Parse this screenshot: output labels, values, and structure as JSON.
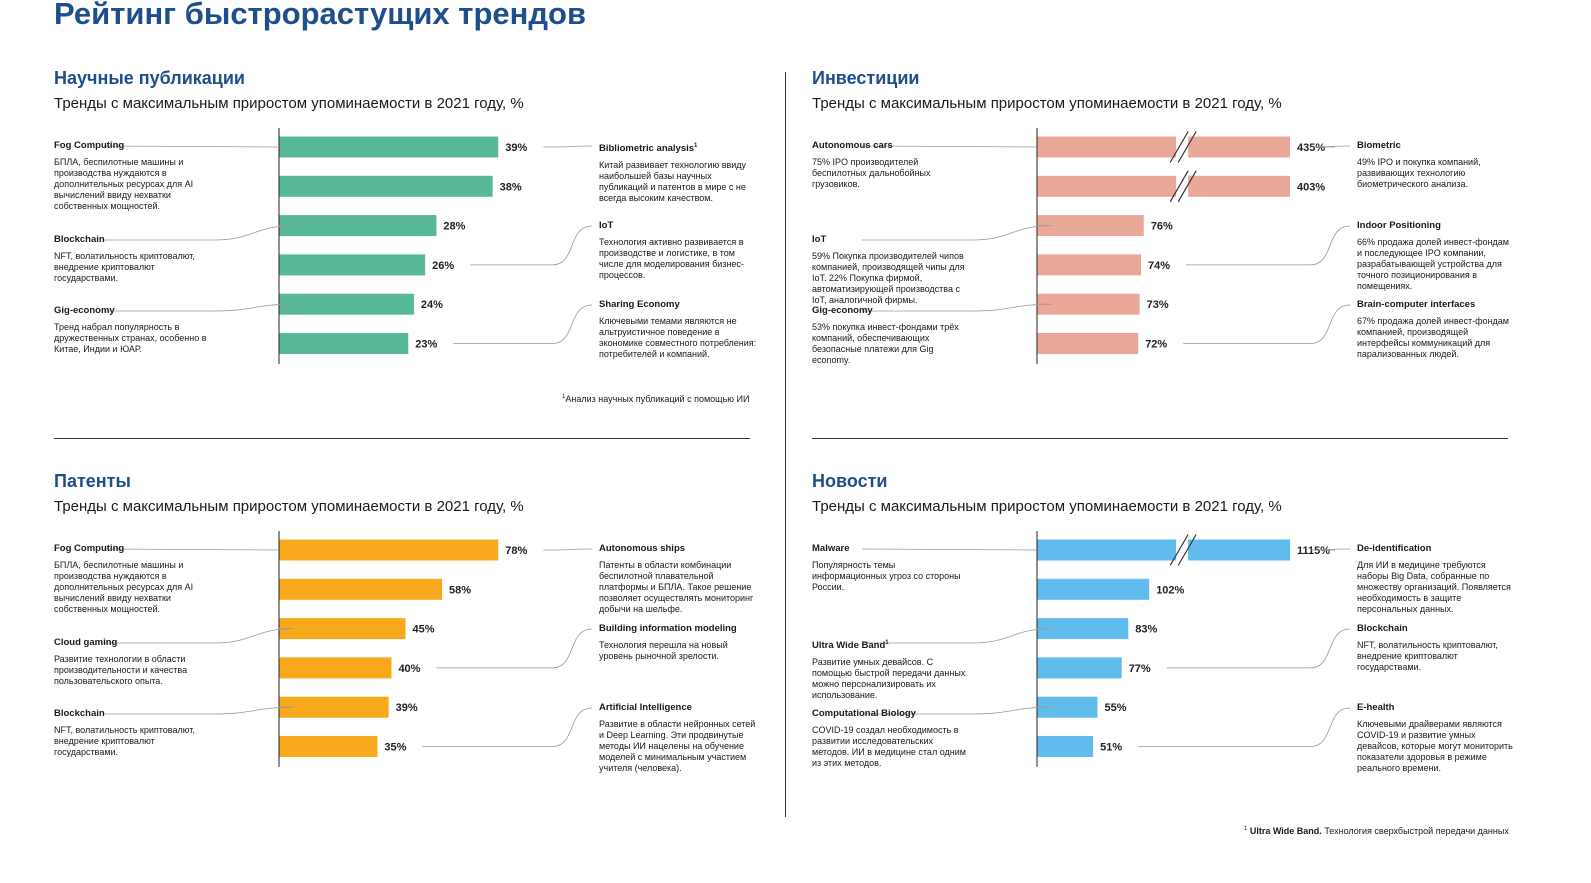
{
  "page": {
    "title": "Рейтинг быстрорастущих трендов"
  },
  "colors": {
    "science": "#57b89a",
    "invest": "#eaa998",
    "patents": "#f7a91b",
    "news": "#5fbcec",
    "title": "#1f4e8c"
  },
  "footnotes": {
    "science": "Анализ научных публикаций с помощью ИИ",
    "news_bold": "Ultra Wide Band.",
    "news_text": "Технология сверхбыстрой передачи данных"
  },
  "chart_data": [
    {
      "type": "bar",
      "title": "Научные публикации",
      "subtitle": "Тренды с максимальным приростом упоминаемости в 2021 году, %",
      "values": [
        39,
        38,
        28,
        26,
        24,
        23
      ],
      "labels": [
        "39%",
        "38%",
        "28%",
        "26%",
        "24%",
        "23%"
      ],
      "max": 45,
      "break_bars": [],
      "left_annotations": [
        {
          "title": "Fog Computing",
          "desc": "БПЛА, беспилотные машины и производства нуждаются в дополнительных ресурсах для AI вычислений ввиду нехватки собственных мощностей."
        },
        {
          "title": "Blockchain",
          "desc": "NFT, волатильность криптовалют, внедрение криптовалют государствами."
        },
        {
          "title": "Gig-economy",
          "desc": "Тренд набрал популярность в дружественных странах, особенно в Китае, Индии и ЮАР."
        }
      ],
      "right_annotations": [
        {
          "title": "Bibliometric analysis",
          "sup": "1",
          "desc": "Китай развивает технологию ввиду наибольшей базы научных публикаций и патентов в мире с не всегда высоким качеством."
        },
        {
          "title": "IoT",
          "desc": "Технология активно развивается в производстве и логистике, в том числе для моделирования бизнес-процессов."
        },
        {
          "title": "Sharing Economy",
          "desc": "Ключевыми темами являются не альтруистичное поведение в экономике совместного потребления: потребителей и компаний."
        }
      ]
    },
    {
      "type": "bar",
      "title": "Инвестиции",
      "subtitle": "Тренды с максимальным приростом упоминаемости в 2021 году, %",
      "values": [
        435,
        403,
        76,
        74,
        73,
        72
      ],
      "labels": [
        "435%",
        "403%",
        "76%",
        "74%",
        "73%",
        "72%"
      ],
      "max": 180,
      "break_bars": [
        0,
        1
      ],
      "left_annotations": [
        {
          "title": "Autonomous cars",
          "desc": "75% IPO производителей беспилотных дальнобойных грузовиков."
        },
        {
          "title": "IoT",
          "desc": "59% Покупка производителей чипов компанией, производящей чипы для IoT. 22% Покупка фирмой, автоматизирующей производства с IoT, аналогичной фирмы."
        },
        {
          "title": "Gig-economy",
          "desc": "53% покупка инвест-фондами трёх компаний, обеспечивающих безопасные платежи для Gig economy."
        }
      ],
      "right_annotations": [
        {
          "title": "Biometric",
          "desc": "49% IPO и покупка компаний, развивающих технологию биометрического анализа."
        },
        {
          "title": "Indoor Positioning",
          "desc": "66% продажа долей инвест-фондам и последующее IPO компании, разрабатывающей устройства для точного позиционирования в помещениях."
        },
        {
          "title": "Brain-computer interfaces",
          "desc": "67% продажа долей инвест-фондам компанией, производящей интерфейсы коммуникаций для парализованных людей."
        }
      ]
    },
    {
      "type": "bar",
      "title": "Патенты",
      "subtitle": "Тренды с максимальным приростом упоминаемости в 2021 году, %",
      "values": [
        78,
        58,
        45,
        40,
        39,
        35
      ],
      "labels": [
        "78%",
        "58%",
        "45%",
        "40%",
        "39%",
        "35%"
      ],
      "max": 90,
      "break_bars": [],
      "left_annotations": [
        {
          "title": "Fog Computing",
          "desc": "БПЛА, беспилотные машины и производства нуждаются в дополнительных ресурсах для AI вычислений ввиду нехватки собственных мощностей."
        },
        {
          "title": "Cloud gaming",
          "desc": "Развитие технологии в области производительности и качества пользовательского опыта."
        },
        {
          "title": "Blockchain",
          "desc": "NFT, волатильность криптовалют, внедрение криптовалют государствами."
        }
      ],
      "right_annotations": [
        {
          "title": "Autonomous ships",
          "desc": "Патенты в области комбинации беспилотной плавательной платформы и БПЛА. Такое решение позволяет осуществлять мониторинг добычи на шельфе."
        },
        {
          "title": "Building information modeling",
          "desc": "Технология перешла на новый уровень рыночной зрелости."
        },
        {
          "title": "Artificial Intelligence",
          "desc": "Развитие в области нейронных сетей и Deep Learning. Эти продвинутые методы ИИ нацелены на обучение моделей с минимальным участием учителя (человека)."
        }
      ]
    },
    {
      "type": "bar",
      "title": "Новости",
      "subtitle": "Тренды с максимальным приростом упоминаемости в 2021 году, %",
      "values": [
        1115,
        102,
        83,
        77,
        55,
        51
      ],
      "labels": [
        "1115%",
        "102%",
        "83%",
        "77%",
        "55%",
        "51%"
      ],
      "max": 230,
      "break_bars": [
        0
      ],
      "left_annotations": [
        {
          "title": "Malware",
          "desc": "Популярность темы информационных угроз со стороны России."
        },
        {
          "title": "Ultra Wide Band",
          "sup": "1",
          "desc": "Развитие умных девайсов. С помощью быстрой передачи данных можно персонализировать их использование."
        },
        {
          "title": "Computational Biology",
          "desc": "COVID-19 создал необходимость в развитии исследовательских методов. ИИ в медицине стал одним из этих методов."
        }
      ],
      "right_annotations": [
        {
          "title": "De-identification",
          "desc": "Для ИИ в медицине требуются наборы Big Data, собранные по множеству организаций. Появляется необходимость в защите персональных данных."
        },
        {
          "title": "Blockchain",
          "desc": "NFT, волатильность криптовалют, внедрение криптовалют государствами."
        },
        {
          "title": "E-health",
          "desc": "Ключевыми драйверами являются COVID-19 и развитие умных девайсов, которые могут мониторить показатели здоровья в режиме реального времени."
        }
      ]
    }
  ]
}
